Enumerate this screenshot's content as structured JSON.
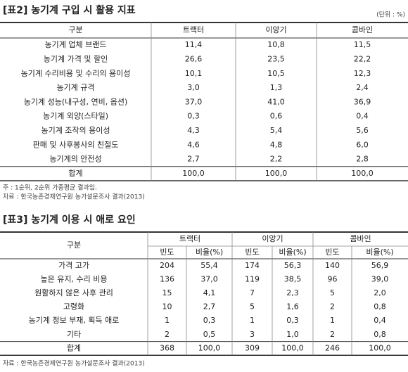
{
  "table1": {
    "title": "[표2] 농기계 구입 시 활용 지표",
    "unit": "(단위 : %)",
    "header": [
      "구분",
      "트랙터",
      "이앙기",
      "콤바인"
    ],
    "rows": [
      [
        "농기계 업체 브랜드",
        "11,4",
        "10,8",
        "11,5"
      ],
      [
        "농기계 가격 및 할인",
        "26,6",
        "23,5",
        "22,2"
      ],
      [
        "농기계 수리비용 및 수리의 용이성",
        "10,1",
        "10,5",
        "12,3"
      ],
      [
        "농기계 규격",
        "3,0",
        "1,3",
        "2,4"
      ],
      [
        "농기계 성능(내구성, 연비, 옵션)",
        "37,0",
        "41,0",
        "36,9"
      ],
      [
        "농기계 외양(스타일)",
        "0,3",
        "0,6",
        "0,4"
      ],
      [
        "농기계 조작의 용이성",
        "4,3",
        "5,4",
        "5,6"
      ],
      [
        "판매 및 사후봉사의 친절도",
        "4,6",
        "4,8",
        "6,0"
      ],
      [
        "농기계의 안전성",
        "2,7",
        "2,2",
        "2,8"
      ],
      [
        "합계",
        "100,0",
        "100,0",
        "100,0"
      ]
    ],
    "notes": [
      "주 : 1순위, 2순위 가중평균 결과임.",
      "자료 : 한국농촌경제연구원 농가설문조사 결과(2013)"
    ]
  },
  "table2": {
    "title": "[표3] 농기계 이용 시 애로 요인",
    "header": [
      "구분",
      "트랙터",
      "이앙기",
      "콤바인"
    ],
    "subheader": [
      "빈도",
      "비율(%)",
      "빈도",
      "비율(%)",
      "빈도",
      "비율(%)"
    ],
    "rows": [
      [
        "가격 고가",
        "204",
        "55,4",
        "174",
        "56,3",
        "140",
        "56,9"
      ],
      [
        "높은 유지, 수리 비용",
        "136",
        "37,0",
        "119",
        "38,5",
        "96",
        "39,0"
      ],
      [
        "원활하지 않은 사후 관리",
        "15",
        "4,1",
        "7",
        "2,3",
        "5",
        "2,0"
      ],
      [
        "고령화",
        "10",
        "2,7",
        "5",
        "1,6",
        "2",
        "0,8"
      ],
      [
        "농기계 정보 부재, 획득 애로",
        "1",
        "0,3",
        "1",
        "0,3",
        "1",
        "0,4"
      ],
      [
        "기타",
        "2",
        "0,5",
        "3",
        "1,0",
        "2",
        "0,8"
      ],
      [
        "합계",
        "368",
        "100,0",
        "309",
        "100,0",
        "246",
        "100,0"
      ]
    ],
    "source": "자료 : 한국농촌경제연구원 농가설문조사 결과(2013)"
  }
}
